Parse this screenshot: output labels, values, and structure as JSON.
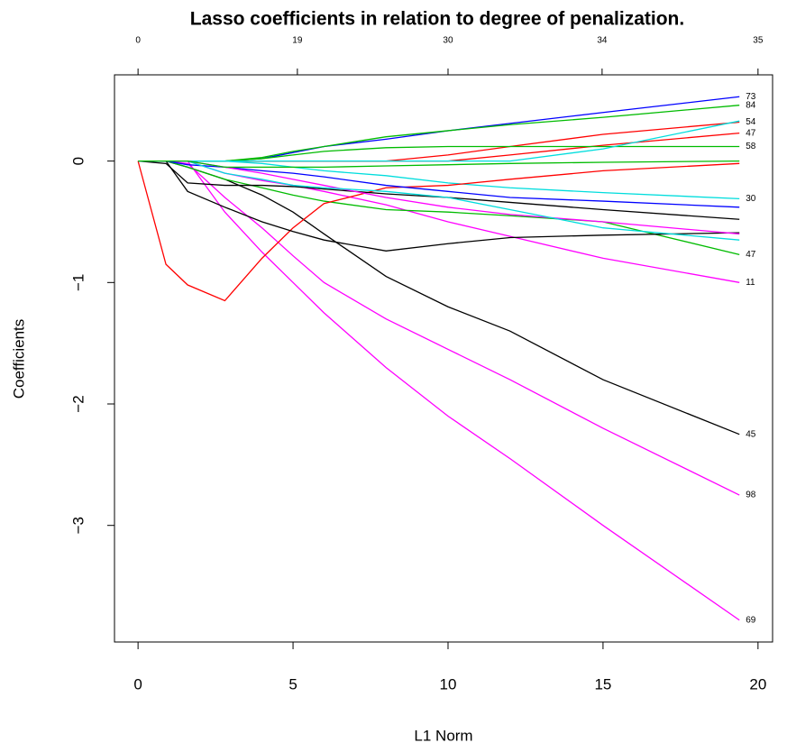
{
  "chart_data": {
    "type": "line",
    "title": "Lasso coefficients in relation to degree of penalization.",
    "xlabel": "L1 Norm",
    "ylabel": "Coefficients",
    "xlim": [
      -0.76,
      20.47
    ],
    "ylim": [
      -3.96,
      0.71
    ],
    "xticks": [
      0,
      5,
      10,
      15,
      20
    ],
    "yticks": [
      {
        "value": -3,
        "label": "−3"
      },
      {
        "value": -2,
        "label": "−2"
      },
      {
        "value": -1,
        "label": "−1"
      },
      {
        "value": 0,
        "label": "0"
      }
    ],
    "top_ticks": [
      {
        "value": 0,
        "label": "0"
      },
      {
        "value": 5.14,
        "label": "19"
      },
      {
        "value": 10.0,
        "label": "30"
      },
      {
        "value": 14.97,
        "label": "34"
      },
      {
        "value": 20,
        "label": "35"
      }
    ],
    "x": [
      0,
      0.9,
      1.6,
      2.8,
      4,
      5,
      6,
      8,
      10,
      12,
      15,
      19.4
    ],
    "series": [
      {
        "name": "73",
        "color": "#0000ff",
        "values": [
          0,
          0,
          0,
          0,
          0.02,
          0.07,
          0.12,
          0.18,
          0.25,
          0.31,
          0.4,
          0.53
        ]
      },
      {
        "name": "84",
        "color": "#00bb00",
        "values": [
          0,
          0,
          0,
          0,
          0.03,
          0.08,
          0.12,
          0.2,
          0.25,
          0.3,
          0.36,
          0.46
        ]
      },
      {
        "name": "54",
        "color": "#ff0000",
        "values": [
          0,
          0,
          0,
          0,
          0,
          0,
          0,
          0,
          0.05,
          0.12,
          0.22,
          0.32
        ]
      },
      {
        "name": "47",
        "color": "#ff0000",
        "values": [
          0,
          0,
          0,
          0,
          0,
          0,
          0,
          0,
          0,
          0.05,
          0.13,
          0.23
        ]
      },
      {
        "name": "58",
        "color": "#00bb00",
        "values": [
          0,
          0,
          0,
          0,
          0.02,
          0.05,
          0.08,
          0.11,
          0.12,
          0.12,
          0.12,
          0.12
        ]
      },
      {
        "color": "#00dddd",
        "values": [
          0,
          0,
          0,
          0,
          0,
          0,
          0,
          0,
          0,
          0,
          0.1,
          0.33
        ]
      },
      {
        "name": "30",
        "color": "#00dddd",
        "values": [
          0,
          0,
          0,
          0,
          -0.02,
          -0.05,
          -0.08,
          -0.12,
          -0.18,
          -0.22,
          -0.26,
          -0.31
        ]
      },
      {
        "name": "11",
        "color": "#ff00ff",
        "values": [
          0,
          0,
          0,
          -0.1,
          -0.16,
          -0.2,
          -0.25,
          -0.36,
          -0.5,
          -0.62,
          -0.8,
          -1.0
        ]
      },
      {
        "name": "45",
        "color": "#000000",
        "values": [
          0,
          0,
          -0.05,
          -0.15,
          -0.28,
          -0.42,
          -0.6,
          -0.95,
          -1.2,
          -1.4,
          -1.8,
          -2.25
        ]
      },
      {
        "name": "98",
        "color": "#ff00ff",
        "values": [
          0,
          0,
          -0.02,
          -0.3,
          -0.55,
          -0.78,
          -1.0,
          -1.3,
          -1.55,
          -1.8,
          -2.2,
          -2.75
        ]
      },
      {
        "name": "69",
        "color": "#ff00ff",
        "values": [
          0,
          0,
          0,
          -0.42,
          -0.75,
          -1.0,
          -1.25,
          -1.7,
          -2.1,
          -2.45,
          -3.0,
          -3.78
        ]
      },
      {
        "name": "47",
        "color": "#00bb00",
        "values": [
          0,
          0,
          -0.05,
          -0.15,
          -0.22,
          -0.28,
          -0.33,
          -0.4,
          -0.42,
          -0.45,
          -0.5,
          -0.77
        ]
      },
      {
        "color": "#ff0000",
        "values": [
          0,
          -0.85,
          -1.02,
          -1.15,
          -0.8,
          -0.55,
          -0.35,
          -0.22,
          -0.2,
          -0.15,
          -0.08,
          -0.02
        ]
      },
      {
        "color": "#000000",
        "values": [
          0,
          0,
          -0.25,
          -0.38,
          -0.5,
          -0.58,
          -0.65,
          -0.74,
          -0.68,
          -0.63,
          -0.61,
          -0.59
        ]
      },
      {
        "color": "#000000",
        "values": [
          0,
          -0.02,
          -0.18,
          -0.2,
          -0.2,
          -0.21,
          -0.23,
          -0.27,
          -0.3,
          -0.34,
          -0.4,
          -0.48
        ]
      },
      {
        "color": "#0000ff",
        "values": [
          0,
          0,
          -0.03,
          -0.05,
          -0.08,
          -0.1,
          -0.13,
          -0.2,
          -0.25,
          -0.3,
          -0.33,
          -0.38
        ]
      },
      {
        "color": "#ff00ff",
        "values": [
          0,
          0,
          0,
          -0.05,
          -0.1,
          -0.15,
          -0.2,
          -0.3,
          -0.38,
          -0.44,
          -0.5,
          -0.6
        ]
      },
      {
        "color": "#00dddd",
        "values": [
          0,
          0,
          0,
          -0.1,
          -0.15,
          -0.2,
          -0.22,
          -0.25,
          -0.3,
          -0.4,
          -0.55,
          -0.65
        ]
      },
      {
        "color": "#00bb00",
        "values": [
          0,
          0,
          0,
          -0.05,
          -0.05,
          -0.05,
          -0.05,
          -0.04,
          -0.03,
          -0.02,
          -0.01,
          0
        ]
      }
    ]
  }
}
